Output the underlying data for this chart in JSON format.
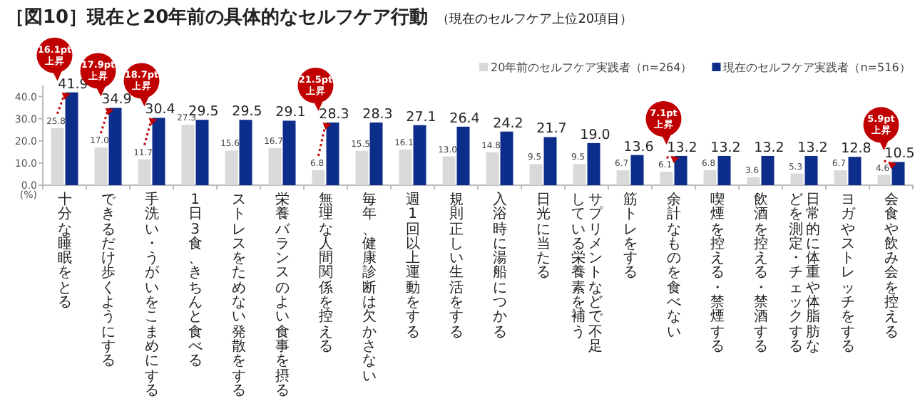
{
  "chart_data": {
    "type": "bar",
    "title": "［図10］現在と20年前の具体的なセルフケア行動",
    "subtitle": "（現在のセルフケア上位20項目）",
    "ylabel": "(%)",
    "categories": [
      "十分な睡眠をとる",
      "できるだけ歩くようにする",
      "手洗い・うがいをこまめにする",
      "1日3食、きちんと食べる",
      "ストレスをためない発散をする",
      "栄養バランスのよい食事を摂る",
      "無理な人間関係を控える",
      "毎年、健康診断は欠かさない",
      "週1回以上運動をする",
      "規則正しい生活をする",
      "入浴時に湯船につかる",
      "日光に当たる",
      "サプリメントなどで不足している栄養素を補う",
      "筋トレをする",
      "余計なものを食べない",
      "喫煙を控える・禁煙する",
      "飲酒を控える・禁酒する",
      "日常的に体重や体脂肪などを測定・チェックする",
      "ヨガやストレッチをする",
      "会食や飲み会を控える"
    ],
    "series": [
      {
        "name": "20年前のセルフケア実践者（n=264）",
        "color": "#d9d9d9",
        "values": [
          25.8,
          17.0,
          11.7,
          27.3,
          15.6,
          16.7,
          6.8,
          15.5,
          16.1,
          13.0,
          14.8,
          9.5,
          9.5,
          6.7,
          6.1,
          6.8,
          3.6,
          5.3,
          6.7,
          4.6
        ],
        "value_labels": [
          "25.8",
          "17.0",
          "11.7",
          "27.3",
          "15.6",
          "16.7",
          "6.8",
          "15.5",
          "16.1",
          "13.0",
          "14.8",
          "9.5",
          "9.5",
          "6.7",
          "6.1",
          "6.8",
          "3.6",
          "5.3",
          "6.7",
          "4.6"
        ]
      },
      {
        "name": "現在のセルフケア実践者（n=516）",
        "color": "#0d2d8a",
        "values": [
          41.9,
          34.9,
          30.4,
          29.5,
          29.5,
          29.1,
          28.3,
          28.3,
          27.1,
          26.4,
          24.2,
          21.7,
          19.0,
          13.6,
          13.2,
          13.2,
          13.2,
          13.2,
          12.8,
          10.5
        ],
        "value_labels": [
          "41.9",
          "34.9",
          "30.4",
          "29.5",
          "29.5",
          "29.1",
          "28.3",
          "28.3",
          "27.1",
          "26.4",
          "24.2",
          "21.7",
          "19.0",
          "13.6",
          "13.2",
          "13.2",
          "13.2",
          "13.2",
          "12.8",
          "10.5"
        ]
      }
    ],
    "ylim": [
      0,
      45
    ],
    "yticks": [
      {
        "value": 0,
        "label": "0.0"
      },
      {
        "value": 10,
        "label": "10.0"
      },
      {
        "value": 20,
        "label": "20.0"
      },
      {
        "value": 30,
        "label": "30.0"
      },
      {
        "value": 40,
        "label": "40.0"
      }
    ],
    "legend": "top right",
    "annotations": [
      {
        "text": "16.1pt\n上昇",
        "x": "十分な睡眠をとる",
        "y": 41.9
      },
      {
        "text": "17.9pt\n上昇",
        "x": "できるだけ歩くようにする",
        "y": 34.9
      },
      {
        "text": "18.7pt\n上昇",
        "x": "手洗い・うがいをこまめにする",
        "y": 30.4
      },
      {
        "text": "21.5pt\n上昇",
        "x": "無理な人間関係を控える",
        "y": 28.3
      },
      {
        "text": "7.1pt\n上昇",
        "x": "余計なものを食べない",
        "y": 13.2
      },
      {
        "text": "5.9pt\n上昇",
        "x": "会食や飲み会を控える",
        "y": 10.5
      }
    ]
  }
}
